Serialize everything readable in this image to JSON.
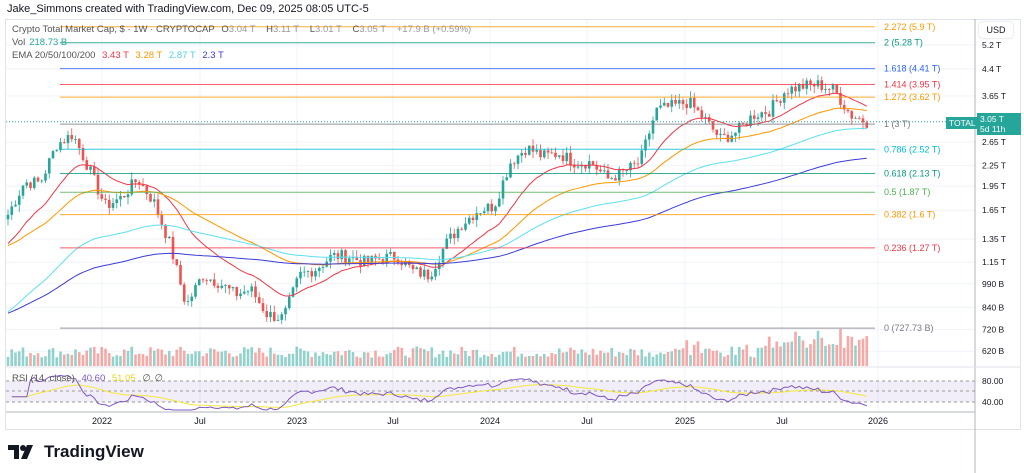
{
  "credit": "Jake_Simmons created with TradingView.com, Dec 09, 2025 08:05 UTC-5",
  "legend": {
    "title": "Crypto Total Market Cap, $ · 1W · CRYPTOCAP",
    "o_label": "O",
    "o": "3.04 T",
    "h_label": "H",
    "h": "3.11 T",
    "l_label": "L",
    "l": "3.01 T",
    "c_label": "C",
    "c": "3.05 T",
    "change": "+17.9 B (+0.59%)",
    "vol_label": "Vol",
    "vol": "218.73 B",
    "ema_label": "EMA 20/50/100/200",
    "ema20": "3.43 T",
    "ema50": "3.28 T",
    "ema100": "2.87 T",
    "ema200": "2.3 T",
    "rsi_label": "RSI (14, close)",
    "rsi": "40.60",
    "rsi_ma": "51.05",
    "na1": "∅",
    "na2": "∅"
  },
  "currency": "USD",
  "price_tag": {
    "symbol": "TOTAL",
    "price": "3.05 T",
    "countdown": "5d 11h"
  },
  "colors": {
    "up": "#26a69a",
    "down": "#ef5350",
    "ema20": "#f23645",
    "ema50": "#ff9800",
    "ema100": "#5ce0f0",
    "ema200": "#3b3bd8",
    "rsi": "#7e57c2",
    "rsi_ma": "#f5e83b"
  },
  "chart_data": {
    "type": "candlestick",
    "scale": "log",
    "price_axis_labels": [
      {
        "v": 5.2,
        "t": "5.2 T"
      },
      {
        "v": 4.4,
        "t": "4.4 T"
      },
      {
        "v": 3.65,
        "t": "3.65 T"
      },
      {
        "v": 2.65,
        "t": "2.65 T"
      },
      {
        "v": 2.25,
        "t": "2.25 T"
      },
      {
        "v": 1.95,
        "t": "1.95 T"
      },
      {
        "v": 1.65,
        "t": "1.65 T"
      },
      {
        "v": 1.35,
        "t": "1.35 T"
      },
      {
        "v": 1.15,
        "t": "1.15 T"
      },
      {
        "v": 0.99,
        "t": "990 B"
      },
      {
        "v": 0.84,
        "t": "840 B"
      },
      {
        "v": 0.72,
        "t": "720 B"
      },
      {
        "v": 0.62,
        "t": "620 B"
      }
    ],
    "rsi_axis_labels": [
      "80.00",
      "40.00"
    ],
    "time_labels": [
      "2022",
      "Jul",
      "2023",
      "Jul",
      "2024",
      "Jul",
      "2025",
      "Jul",
      "2026"
    ],
    "monthly_close_T": [
      1.6,
      2.0,
      2.0,
      2.6,
      2.8,
      2.2,
      1.7,
      1.8,
      2.05,
      1.75,
      1.3,
      0.85,
      1.05,
      1.0,
      0.92,
      0.95,
      0.8,
      0.78,
      1.05,
      1.1,
      1.2,
      1.2,
      1.15,
      1.18,
      1.2,
      1.08,
      1.05,
      1.3,
      1.5,
      1.65,
      1.7,
      2.3,
      2.55,
      2.4,
      2.45,
      2.3,
      2.3,
      2.05,
      2.15,
      2.3,
      3.3,
      3.4,
      3.5,
      3.1,
      2.7,
      2.85,
      3.2,
      3.3,
      3.8,
      3.9,
      3.95,
      3.8,
      3.2,
      3.05
    ],
    "fib_levels": [
      {
        "label": "2.272 (5.9 T)",
        "v": 5.9,
        "color": "#ff9800"
      },
      {
        "label": "2 (5.28 T)",
        "v": 5.28,
        "color": "#089981"
      },
      {
        "label": "1.618 (4.41 T)",
        "v": 4.41,
        "color": "#2962ff"
      },
      {
        "label": "1.414 (3.95 T)",
        "v": 3.95,
        "color": "#f23645"
      },
      {
        "label": "1.272 (3.62 T)",
        "v": 3.62,
        "color": "#ff9800"
      },
      {
        "label": "1 (3 T)",
        "v": 3.0,
        "color": "#787b86"
      },
      {
        "label": "0.786 (2.52 T)",
        "v": 2.52,
        "color": "#00bcd4"
      },
      {
        "label": "0.618 (2.13 T)",
        "v": 2.13,
        "color": "#089981"
      },
      {
        "label": "0.5 (1.87 T)",
        "v": 1.87,
        "color": "#4caf50"
      },
      {
        "label": "0.382 (1.6 T)",
        "v": 1.6,
        "color": "#ff9800"
      },
      {
        "label": "0.236 (1.27 T)",
        "v": 1.27,
        "color": "#f23645"
      },
      {
        "label": "0 (727.73 B)",
        "v": 0.72773,
        "color": "#787b86"
      }
    ]
  },
  "brand": "TradingView"
}
